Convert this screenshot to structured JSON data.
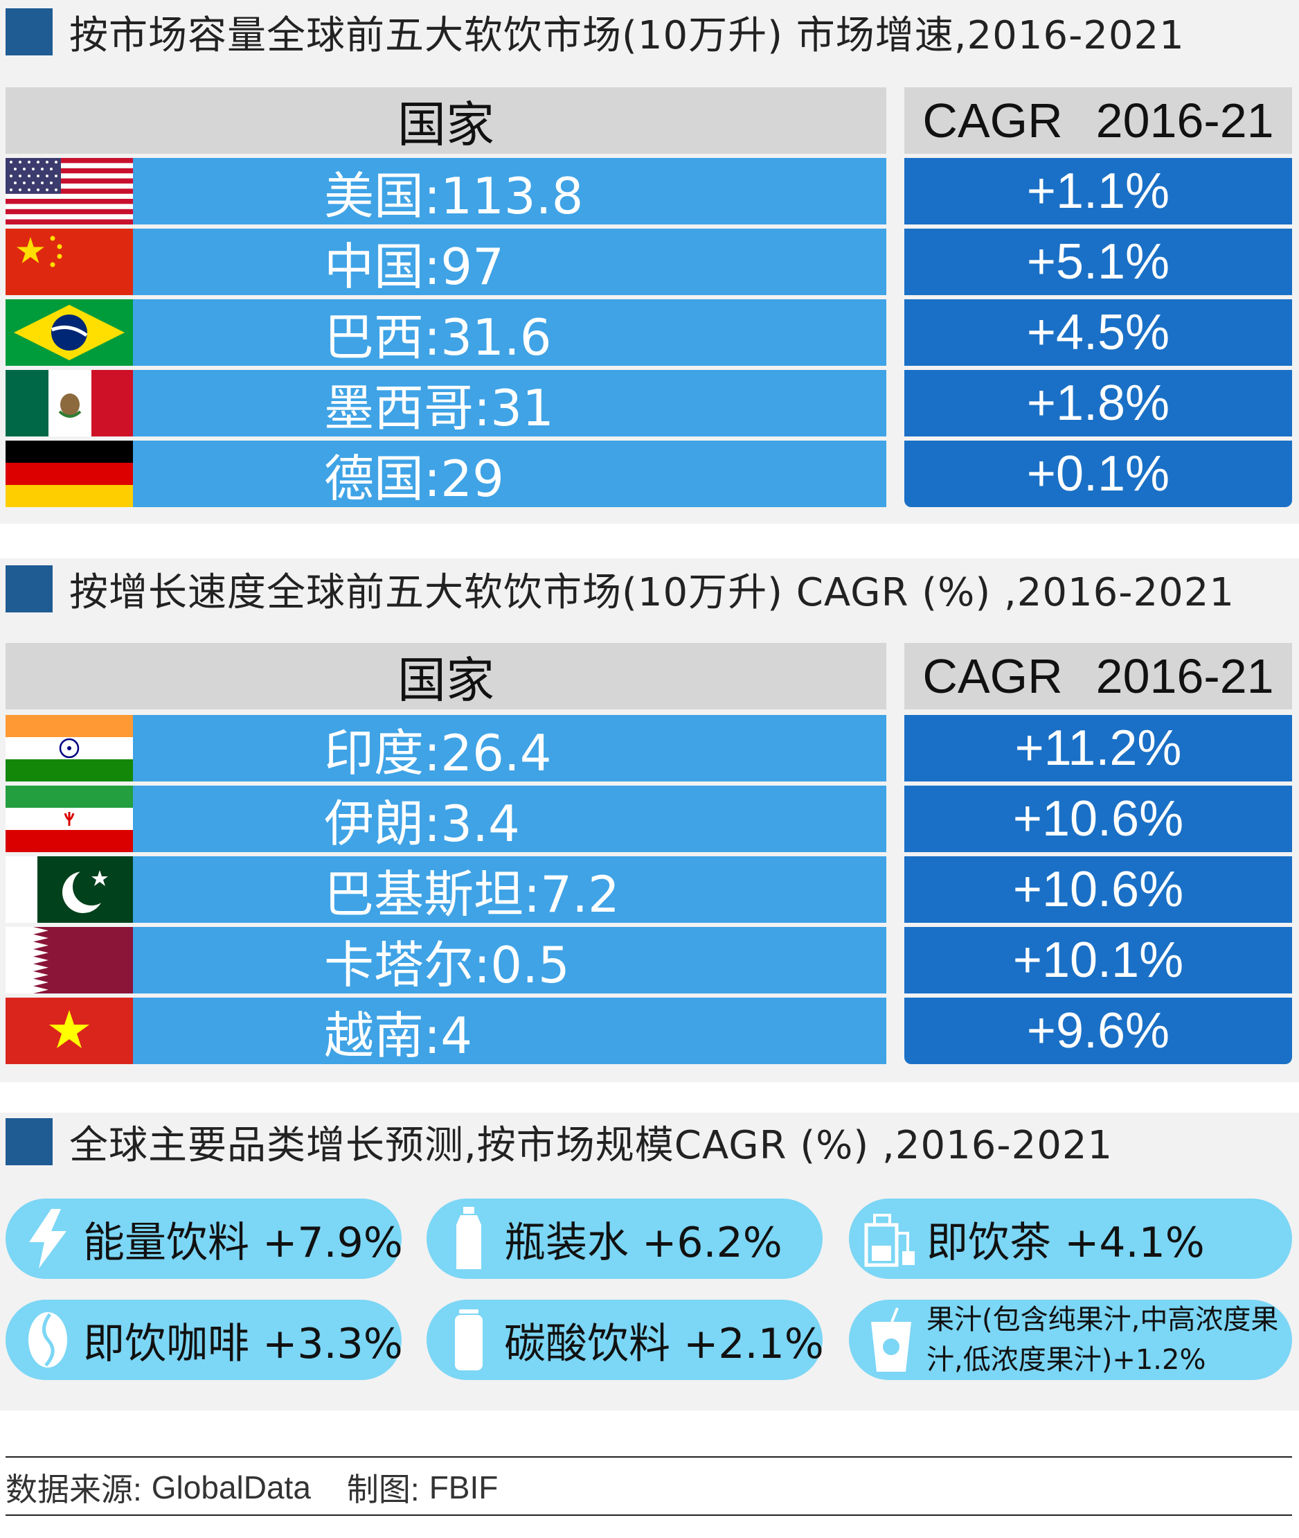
{
  "colors": {
    "square": "#1f5c94",
    "header_bg": "#d6d6d6",
    "country_bg": "#3fa3e6",
    "cagr_bg": "#1a70c6",
    "pill_bg": "#7cd6f5",
    "section_bg": "#f2f2f2"
  },
  "chart_data": [
    {
      "type": "table",
      "title": "按市场容量全球前五大软饮市场(10万升) 市场增速,2016-2021",
      "columns": [
        "国家",
        "CAGR",
        "2016-21"
      ],
      "rows": [
        {
          "country": "美国",
          "value": "113.8",
          "cagr": "+1.1%",
          "flag": "usa-flag-icon"
        },
        {
          "country": "中国",
          "value": "97",
          "cagr": "+5.1%",
          "flag": "china-flag-icon"
        },
        {
          "country": "巴西",
          "value": "31.6",
          "cagr": "+4.5%",
          "flag": "brazil-flag-icon"
        },
        {
          "country": "墨西哥",
          "value": "31",
          "cagr": "+1.8%",
          "flag": "mexico-flag-icon"
        },
        {
          "country": "德国",
          "value": "29",
          "cagr": "+0.1%",
          "flag": "germany-flag-icon"
        }
      ]
    },
    {
      "type": "table",
      "title": "按增长速度全球前五大软饮市场(10万升) CAGR (%) ,2016-2021",
      "columns": [
        "国家",
        "CAGR",
        "2016-21"
      ],
      "rows": [
        {
          "country": "印度",
          "value": "26.4",
          "cagr": "+11.2%",
          "flag": "india-flag-icon"
        },
        {
          "country": "伊朗",
          "value": "3.4",
          "cagr": "+10.6%",
          "flag": "iran-flag-icon"
        },
        {
          "country": "巴基斯坦",
          "value": "7.2",
          "cagr": "+10.6%",
          "flag": "pakistan-flag-icon"
        },
        {
          "country": "卡塔尔",
          "value": "0.5",
          "cagr": "+10.1%",
          "flag": "qatar-flag-icon"
        },
        {
          "country": "越南",
          "value": "4",
          "cagr": "+9.6%",
          "flag": "vietnam-flag-icon"
        }
      ]
    },
    {
      "type": "table",
      "title": "全球主要品类增长预测,按市场规模CAGR (%) ,2016-2021",
      "categories": [
        {
          "name": "能量饮料",
          "cagr": "+7.9%",
          "icon": "lightning-icon"
        },
        {
          "name": "瓶装水",
          "cagr": "+6.2%",
          "icon": "water-bottle-icon"
        },
        {
          "name": "即饮茶",
          "cagr": "+4.1%",
          "icon": "tea-carton-icon"
        },
        {
          "name": "即饮咖啡",
          "cagr": "+3.3%",
          "icon": "coffee-bean-icon"
        },
        {
          "name": "碳酸饮料",
          "cagr": "+2.1%",
          "icon": "soda-can-icon"
        },
        {
          "name": "果汁(包含纯果汁,中高浓度果汁,低浓度果汁)",
          "cagr": "+1.2%",
          "icon": "juice-cup-icon"
        }
      ]
    }
  ],
  "labels": {
    "t1_country_header": "国家",
    "t1_cagr_header_a": "CAGR",
    "t1_cagr_header_b": "2016-21",
    "t2_country_header": "国家",
    "t2_cagr_header_a": "CAGR",
    "t2_cagr_header_b": "2016-21"
  },
  "rows_text": {
    "t1": [
      "美国:113.8",
      "中国:97",
      "巴西:31.6",
      "墨西哥:31",
      "德国:29"
    ],
    "t2": [
      "印度:26.4",
      "伊朗:3.4",
      "巴基斯坦:7.2",
      "卡塔尔:0.5",
      "越南:4"
    ]
  },
  "pills_text": [
    "能量饮料 +7.9%",
    "瓶装水 +6.2%",
    "即饮茶 +4.1%",
    "即饮咖啡 +3.3%",
    "碳酸饮料 +2.1%",
    "果汁(包含纯果汁,中高浓度果汁,低浓度果汁)+1.2%"
  ],
  "footer": {
    "source_label": "数据来源:",
    "source_value": "GlobalData",
    "maker_label": "制图:",
    "maker_value": "FBIF"
  }
}
